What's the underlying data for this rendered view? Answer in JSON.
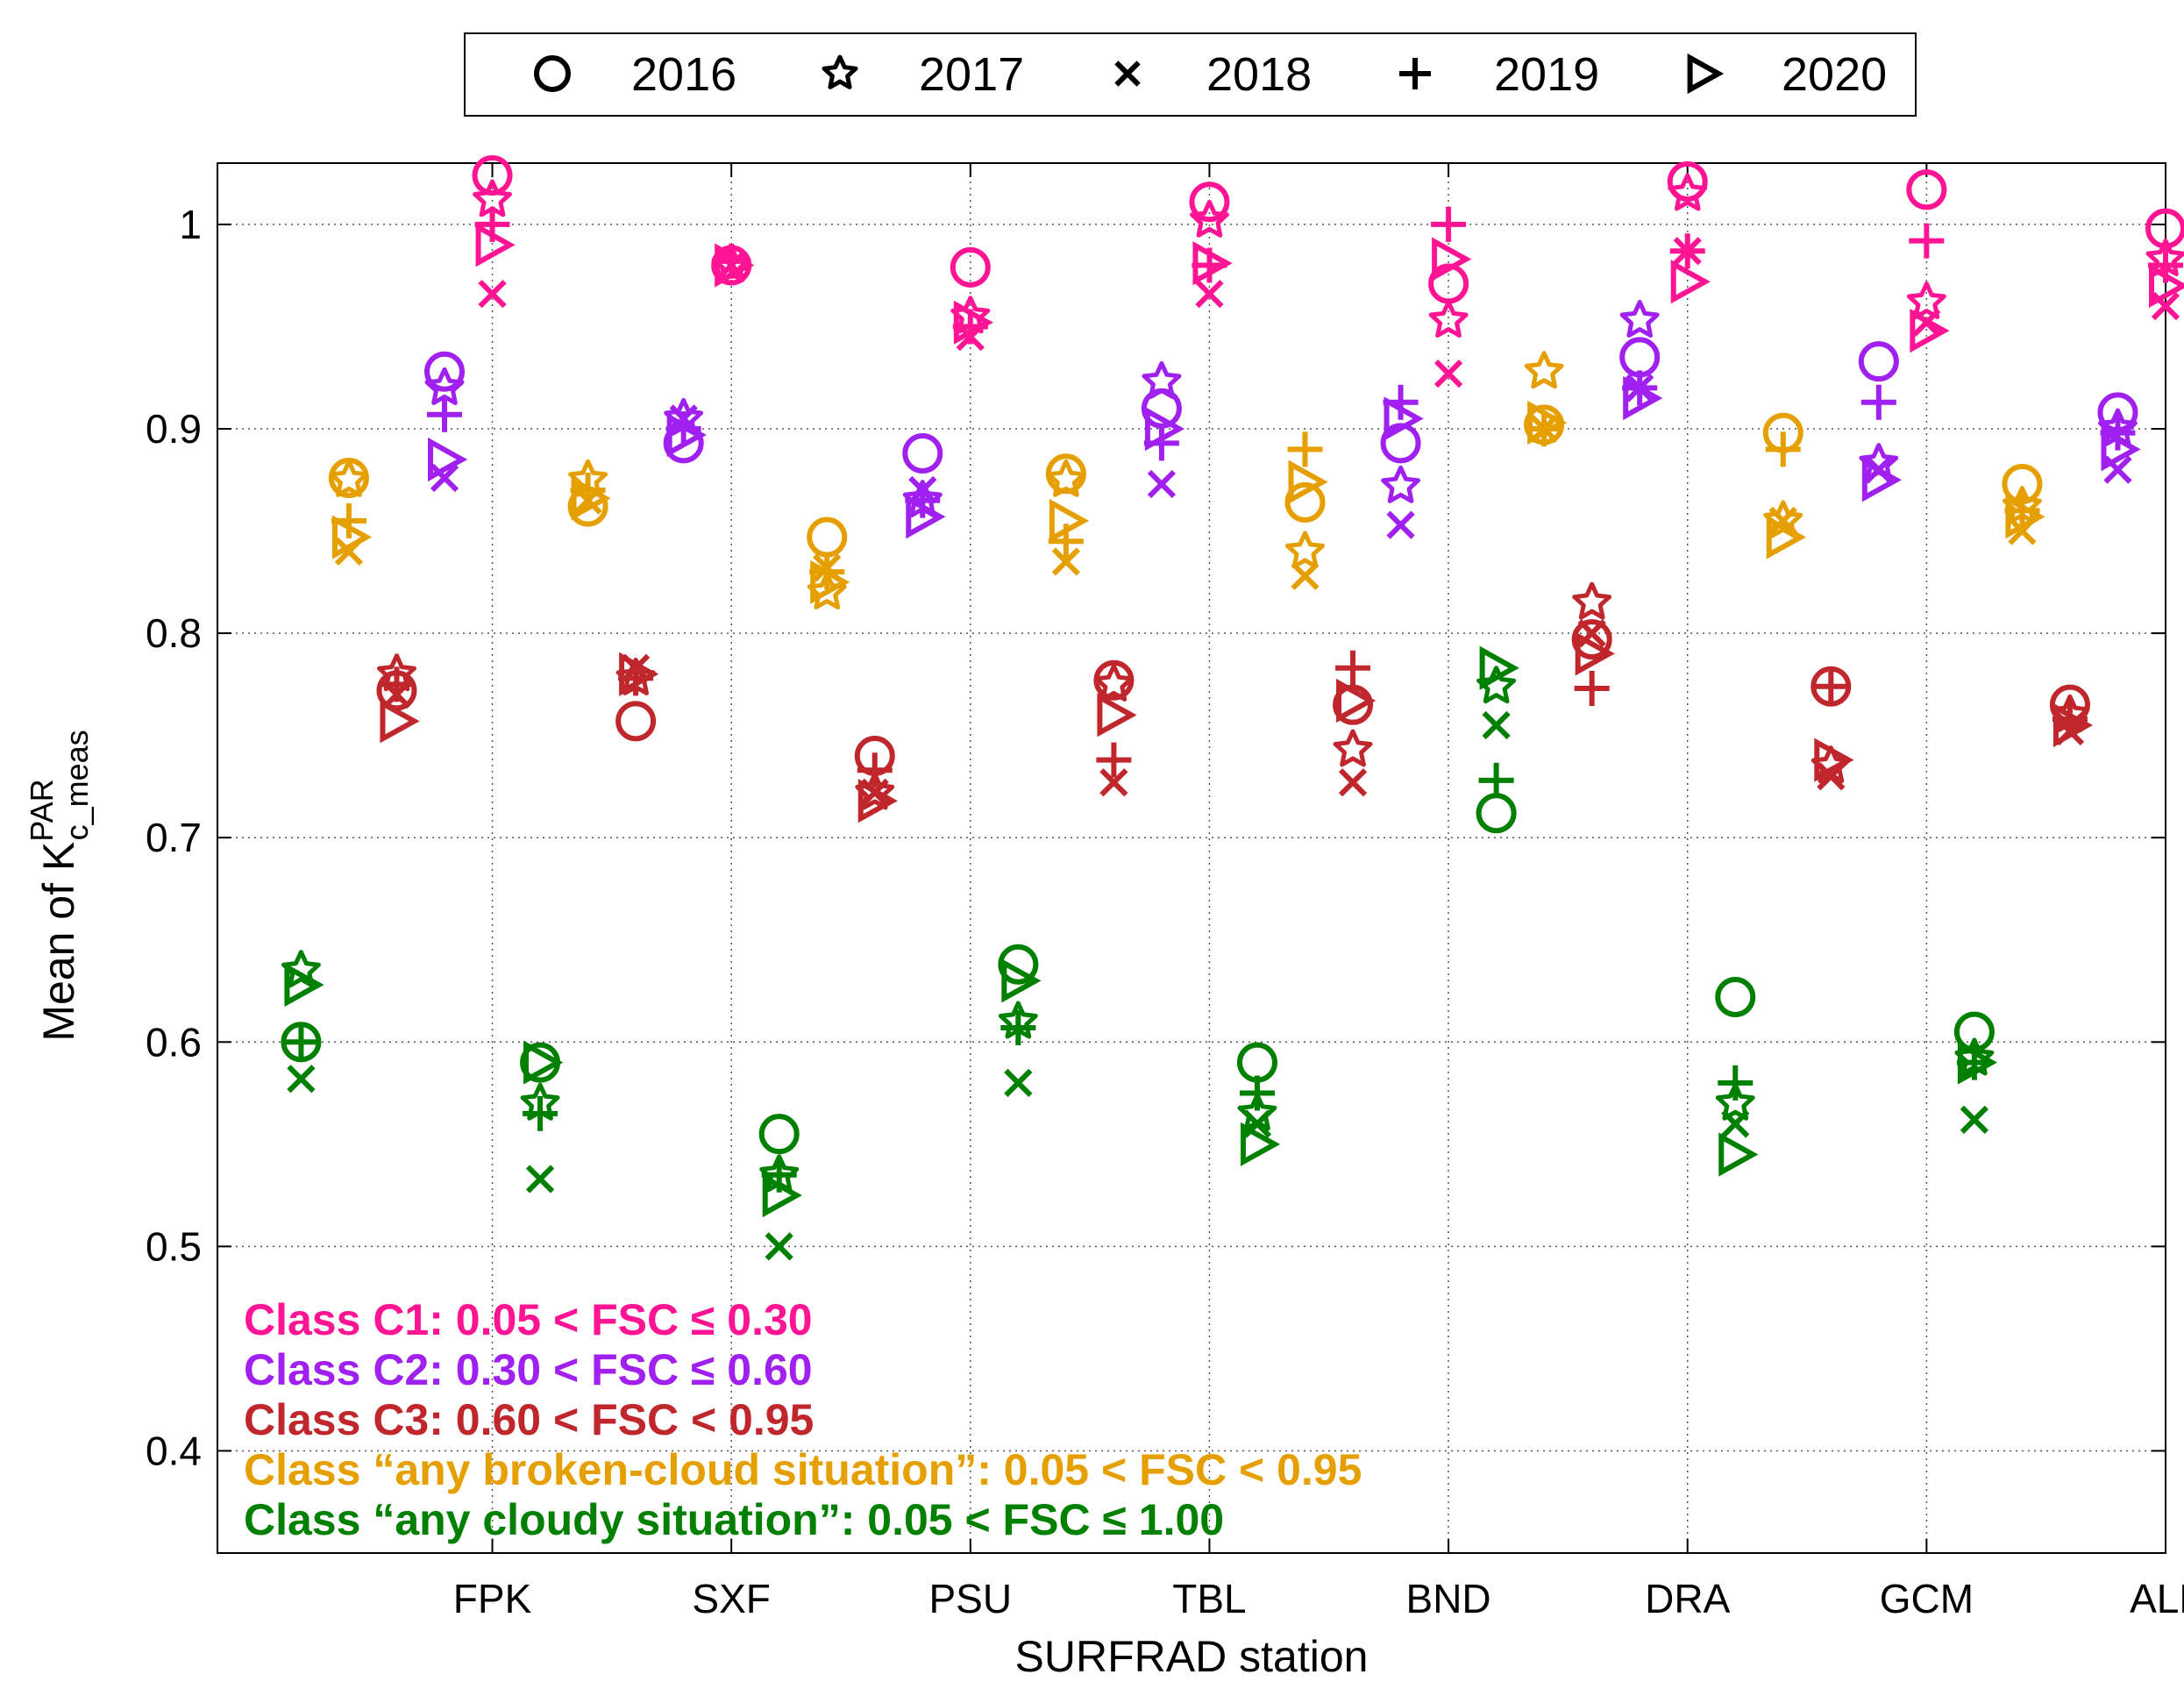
{
  "chart_data": {
    "type": "scatter",
    "title": "",
    "xlabel": "SURFRAD station",
    "ylabel_main": "Mean of K",
    "ylabel_sup": "PAR",
    "ylabel_sub": "c_meas",
    "ylim": [
      0.35,
      1.03
    ],
    "yticks": [
      0.4,
      0.5,
      0.6,
      0.7,
      0.8,
      0.9,
      1.0
    ],
    "ytick_labels": [
      "0.4",
      "0.5",
      "0.6",
      "0.7",
      "0.8",
      "0.9",
      "1"
    ],
    "stations": [
      "FPK",
      "SXF",
      "PSU",
      "TBL",
      "BND",
      "DRA",
      "GCM",
      "ALL"
    ],
    "grid": true,
    "legend_position": "top",
    "years": [
      {
        "name": "2016",
        "marker": "circle"
      },
      {
        "name": "2017",
        "marker": "star"
      },
      {
        "name": "2018",
        "marker": "x"
      },
      {
        "name": "2019",
        "marker": "plus"
      },
      {
        "name": "2020",
        "marker": "triangle-right"
      }
    ],
    "classes": [
      {
        "name": "C1",
        "label": "Class C1: 0.05 < FSC ≤ 0.30",
        "color": "#ff1493",
        "offset": 0.0,
        "values": [
          [
            1.024,
            1.012,
            0.966,
            1.0,
            0.99
          ],
          [
            0.98,
            0.98,
            0.98,
            0.982,
            0.98
          ],
          [
            0.979,
            0.955,
            0.945,
            0.95,
            0.952
          ],
          [
            1.011,
            1.002,
            0.966,
            0.98,
            0.981
          ],
          [
            0.971,
            0.953,
            0.927,
            1.0,
            0.983
          ],
          [
            1.021,
            1.015,
            0.987,
            0.987,
            0.972
          ],
          [
            1.017,
            0.962,
            0.952,
            0.992,
            0.948
          ],
          [
            0.998,
            0.983,
            0.96,
            0.98,
            0.97
          ]
        ]
      },
      {
        "name": "C2",
        "label": "Class C2: 0.30 < FSC ≤ 0.60",
        "color": "#a020f0",
        "offset": -0.2,
        "values": [
          [
            0.928,
            0.92,
            0.876,
            0.907,
            0.885
          ],
          [
            0.893,
            0.905,
            0.905,
            0.9,
            0.897
          ],
          [
            0.888,
            0.865,
            0.87,
            0.865,
            0.857
          ],
          [
            0.91,
            0.923,
            0.873,
            0.893,
            0.9
          ],
          [
            0.893,
            0.872,
            0.853,
            0.913,
            0.905
          ],
          [
            0.935,
            0.953,
            0.92,
            0.92,
            0.915
          ],
          [
            0.933,
            0.883,
            0.88,
            0.913,
            0.875
          ],
          [
            0.908,
            0.9,
            0.88,
            0.898,
            0.89
          ]
        ]
      },
      {
        "name": "C3",
        "label": "Class C3: 0.60 < FSC < 0.95",
        "color": "#c0272d",
        "offset": -0.4,
        "values": [
          [
            0.772,
            0.78,
            0.77,
            0.775,
            0.757
          ],
          [
            0.757,
            0.778,
            0.783,
            0.778,
            0.78
          ],
          [
            0.74,
            0.722,
            0.722,
            0.733,
            0.718
          ],
          [
            0.777,
            0.775,
            0.727,
            0.738,
            0.76
          ],
          [
            0.765,
            0.743,
            0.727,
            0.783,
            0.767
          ],
          [
            0.797,
            0.815,
            0.8,
            0.773,
            0.79
          ],
          [
            0.774,
            0.735,
            0.73,
            0.774,
            0.738
          ],
          [
            0.765,
            0.76,
            0.752,
            0.758,
            0.755
          ]
        ]
      },
      {
        "name": "broken",
        "label": "Class “any broken-cloud situation”: 0.05 < FSC < 0.95",
        "color": "#e69f00",
        "offset": -0.6,
        "values": [
          [
            0.876,
            0.875,
            0.84,
            0.855,
            0.847
          ],
          [
            0.862,
            0.875,
            0.865,
            0.87,
            0.866
          ],
          [
            0.847,
            0.82,
            0.832,
            0.83,
            0.825
          ],
          [
            0.878,
            0.875,
            0.835,
            0.845,
            0.855
          ],
          [
            0.864,
            0.84,
            0.828,
            0.89,
            0.874
          ],
          [
            0.902,
            0.928,
            0.9,
            0.9,
            0.903
          ],
          [
            0.898,
            0.855,
            0.855,
            0.89,
            0.847
          ],
          [
            0.873,
            0.862,
            0.85,
            0.86,
            0.857
          ]
        ]
      },
      {
        "name": "cloudy",
        "label": "Class “any cloudy situation”: 0.05 < FSC ≤ 1.00",
        "color": "#008000",
        "offset": -0.8,
        "values": [
          [
            0.6,
            0.635,
            0.582,
            0.6,
            0.628
          ],
          [
            0.59,
            0.57,
            0.533,
            0.565,
            0.59
          ],
          [
            0.555,
            0.535,
            0.5,
            0.535,
            0.525
          ],
          [
            0.638,
            0.61,
            0.58,
            0.607,
            0.63
          ],
          [
            0.59,
            0.565,
            0.56,
            0.575,
            0.55
          ],
          [
            0.712,
            0.774,
            0.755,
            0.728,
            0.783
          ],
          [
            0.622,
            0.57,
            0.56,
            0.58,
            0.545
          ],
          [
            0.605,
            0.592,
            0.562,
            0.59,
            0.59
          ]
        ]
      }
    ]
  }
}
